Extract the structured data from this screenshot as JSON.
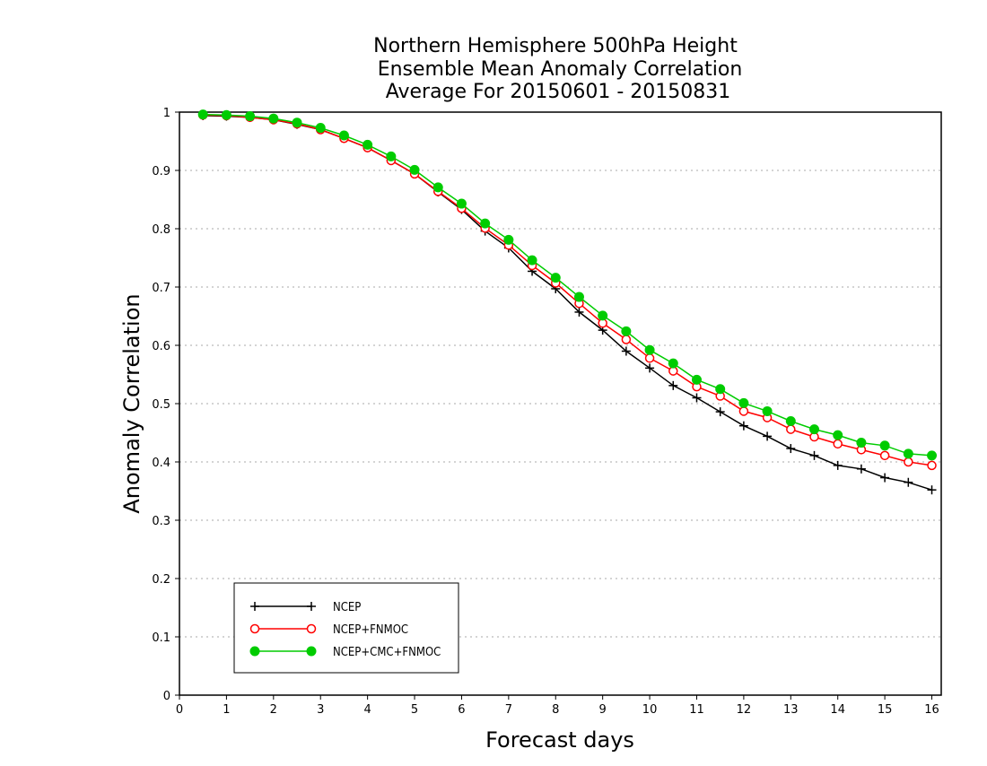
{
  "chart_data": {
    "type": "line",
    "title_lines": [
      "Northern Hemisphere 500hPa Height",
      "Ensemble Mean Anomaly Correlation",
      "Average For 20150601 - 20150831"
    ],
    "xlabel": "Forecast days",
    "ylabel": "Anomaly Correlation",
    "xlim": [
      0,
      16.2
    ],
    "ylim": [
      0,
      1
    ],
    "x_ticks": [
      0,
      1,
      2,
      3,
      4,
      5,
      6,
      7,
      8,
      9,
      10,
      11,
      12,
      13,
      14,
      15,
      16
    ],
    "y_ticks": [
      0,
      0.1,
      0.2,
      0.3,
      0.4,
      0.5,
      0.6,
      0.7,
      0.8,
      0.9,
      1
    ],
    "y_tick_labels": [
      "0",
      "0.1",
      "0.2",
      "0.3",
      "0.4",
      "0.5",
      "0.6",
      "0.7",
      "0.8",
      "0.9",
      "1"
    ],
    "grid": "horizontal-dotted",
    "legend_position": "bottom-left",
    "x": [
      0.5,
      1,
      1.5,
      2,
      2.5,
      3,
      3.5,
      4,
      4.5,
      5,
      5.5,
      6,
      6.5,
      7,
      7.5,
      8,
      8.5,
      9,
      9.5,
      10,
      10.5,
      11,
      11.5,
      12,
      12.5,
      13,
      13.5,
      14,
      14.5,
      15,
      15.5,
      16
    ],
    "series": [
      {
        "name": "NCEP",
        "color": "#000000",
        "marker": "plus",
        "values": [
          0.994,
          0.993,
          0.991,
          0.987,
          0.979,
          0.97,
          0.955,
          0.939,
          0.917,
          0.894,
          0.863,
          0.833,
          0.796,
          0.767,
          0.727,
          0.697,
          0.657,
          0.626,
          0.59,
          0.561,
          0.531,
          0.51,
          0.486,
          0.462,
          0.444,
          0.423,
          0.411,
          0.394,
          0.388,
          0.373,
          0.365,
          0.352
        ]
      },
      {
        "name": "NCEP+FNMOC",
        "color": "#ff0000",
        "marker": "open-circle",
        "values": [
          0.995,
          0.994,
          0.991,
          0.987,
          0.98,
          0.97,
          0.955,
          0.939,
          0.917,
          0.894,
          0.864,
          0.835,
          0.801,
          0.772,
          0.737,
          0.707,
          0.672,
          0.638,
          0.61,
          0.578,
          0.556,
          0.529,
          0.513,
          0.487,
          0.476,
          0.456,
          0.443,
          0.431,
          0.421,
          0.411,
          0.4,
          0.394
        ]
      },
      {
        "name": "NCEP+CMC+FNMOC",
        "color": "#00cc00",
        "marker": "filled-circle",
        "values": [
          0.996,
          0.995,
          0.993,
          0.989,
          0.982,
          0.973,
          0.96,
          0.944,
          0.924,
          0.901,
          0.871,
          0.843,
          0.809,
          0.781,
          0.746,
          0.716,
          0.683,
          0.651,
          0.624,
          0.592,
          0.569,
          0.541,
          0.525,
          0.501,
          0.487,
          0.47,
          0.456,
          0.446,
          0.433,
          0.428,
          0.414,
          0.411
        ]
      }
    ]
  }
}
